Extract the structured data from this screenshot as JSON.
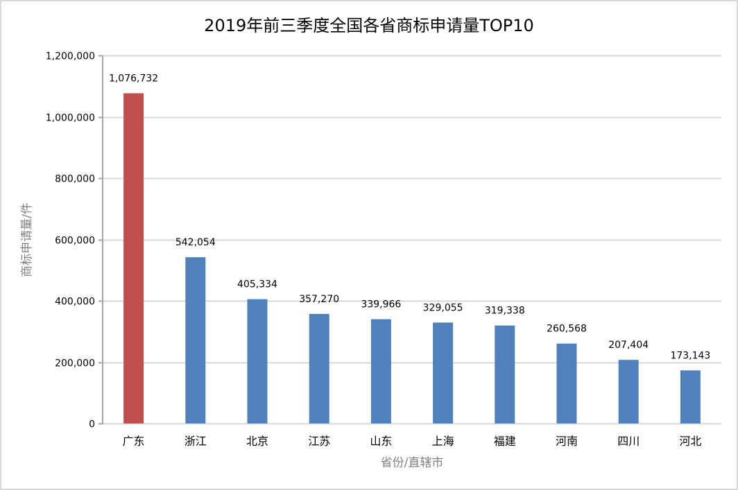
{
  "chart_data": {
    "type": "bar",
    "title": "2019年前三季度全国各省商标申请量TOP10",
    "xlabel": "省份/直辖市",
    "ylabel": "商标申请量/件",
    "categories": [
      "广东",
      "浙江",
      "北京",
      "江苏",
      "山东",
      "上海",
      "福建",
      "河南",
      "四川",
      "河北"
    ],
    "values": [
      1076732,
      542054,
      405334,
      357270,
      339966,
      329055,
      319338,
      260568,
      207404,
      173143
    ],
    "data_labels": [
      "1,076,732",
      "542,054",
      "405,334",
      "357,270",
      "339,966",
      "329,055",
      "319,338",
      "260,568",
      "207,404",
      "173,143"
    ],
    "ylim": [
      0,
      1200000
    ],
    "yticks": [
      0,
      200000,
      400000,
      600000,
      800000,
      1000000,
      1200000
    ],
    "ytick_labels": [
      "0",
      "200,000",
      "400,000",
      "600,000",
      "800,000",
      "1,000,000",
      "1,200,000"
    ],
    "grid": true,
    "legend": "none",
    "colors": {
      "highlight": "#c0504d",
      "default": "#4f81bd",
      "grid": "#d9d9d9",
      "axis": "#a6a6a6"
    },
    "highlight_index": 0
  }
}
